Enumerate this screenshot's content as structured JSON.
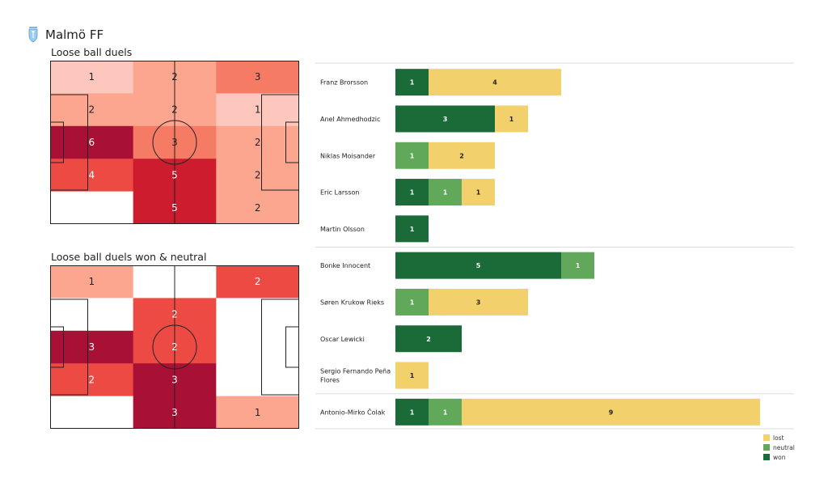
{
  "header": {
    "team": "Malmö FF",
    "logo_icon": "malmo-ff-crest-icon"
  },
  "colors": {
    "won": "#1a6b37",
    "neutral": "#62a85a",
    "lost": "#f2d06b",
    "heat": [
      "#fdc7bd",
      "#fca68f",
      "#f57b65",
      "#ec4a43",
      "#cc1c2e",
      "#a91036"
    ]
  },
  "chart_data": [
    {
      "type": "heatmap",
      "title": "Loose ball duels",
      "rows": 5,
      "cols": 3,
      "values": [
        [
          1,
          2,
          3
        ],
        [
          2,
          2,
          1
        ],
        [
          6,
          3,
          2
        ],
        [
          4,
          5,
          2
        ],
        [
          null,
          5,
          2
        ]
      ]
    },
    {
      "type": "heatmap",
      "title": "Loose ball duels won & neutral",
      "rows": 5,
      "cols": 3,
      "values": [
        [
          1,
          null,
          2
        ],
        [
          null,
          2,
          null
        ],
        [
          3,
          2,
          null
        ],
        [
          2,
          3,
          null
        ],
        [
          null,
          3,
          1
        ]
      ]
    },
    {
      "type": "bar",
      "orientation": "horizontal",
      "stacked": true,
      "categories": [
        "Franz Brorsson",
        "Anel Ahmedhodzic",
        "Niklas Moisander",
        "Eric Larsson",
        "Martin Olsson",
        "Bonke Innocent",
        "Søren  Krukow Rieks",
        "Oscar Lewicki",
        "Sergio Fernando Peña\nFlores",
        "Antonio-Mirko Čolak"
      ],
      "series": [
        {
          "name": "won",
          "values": [
            1,
            3,
            0,
            1,
            1,
            5,
            0,
            2,
            0,
            1
          ]
        },
        {
          "name": "neutral",
          "values": [
            0,
            0,
            1,
            1,
            0,
            1,
            1,
            0,
            0,
            1
          ]
        },
        {
          "name": "lost",
          "values": [
            4,
            1,
            2,
            1,
            0,
            0,
            3,
            0,
            1,
            9
          ]
        }
      ],
      "group_separators_after": [
        4,
        8
      ],
      "legend": {
        "position": "bottom-right",
        "entries": [
          "lost",
          "neutral",
          "won"
        ]
      }
    }
  ]
}
